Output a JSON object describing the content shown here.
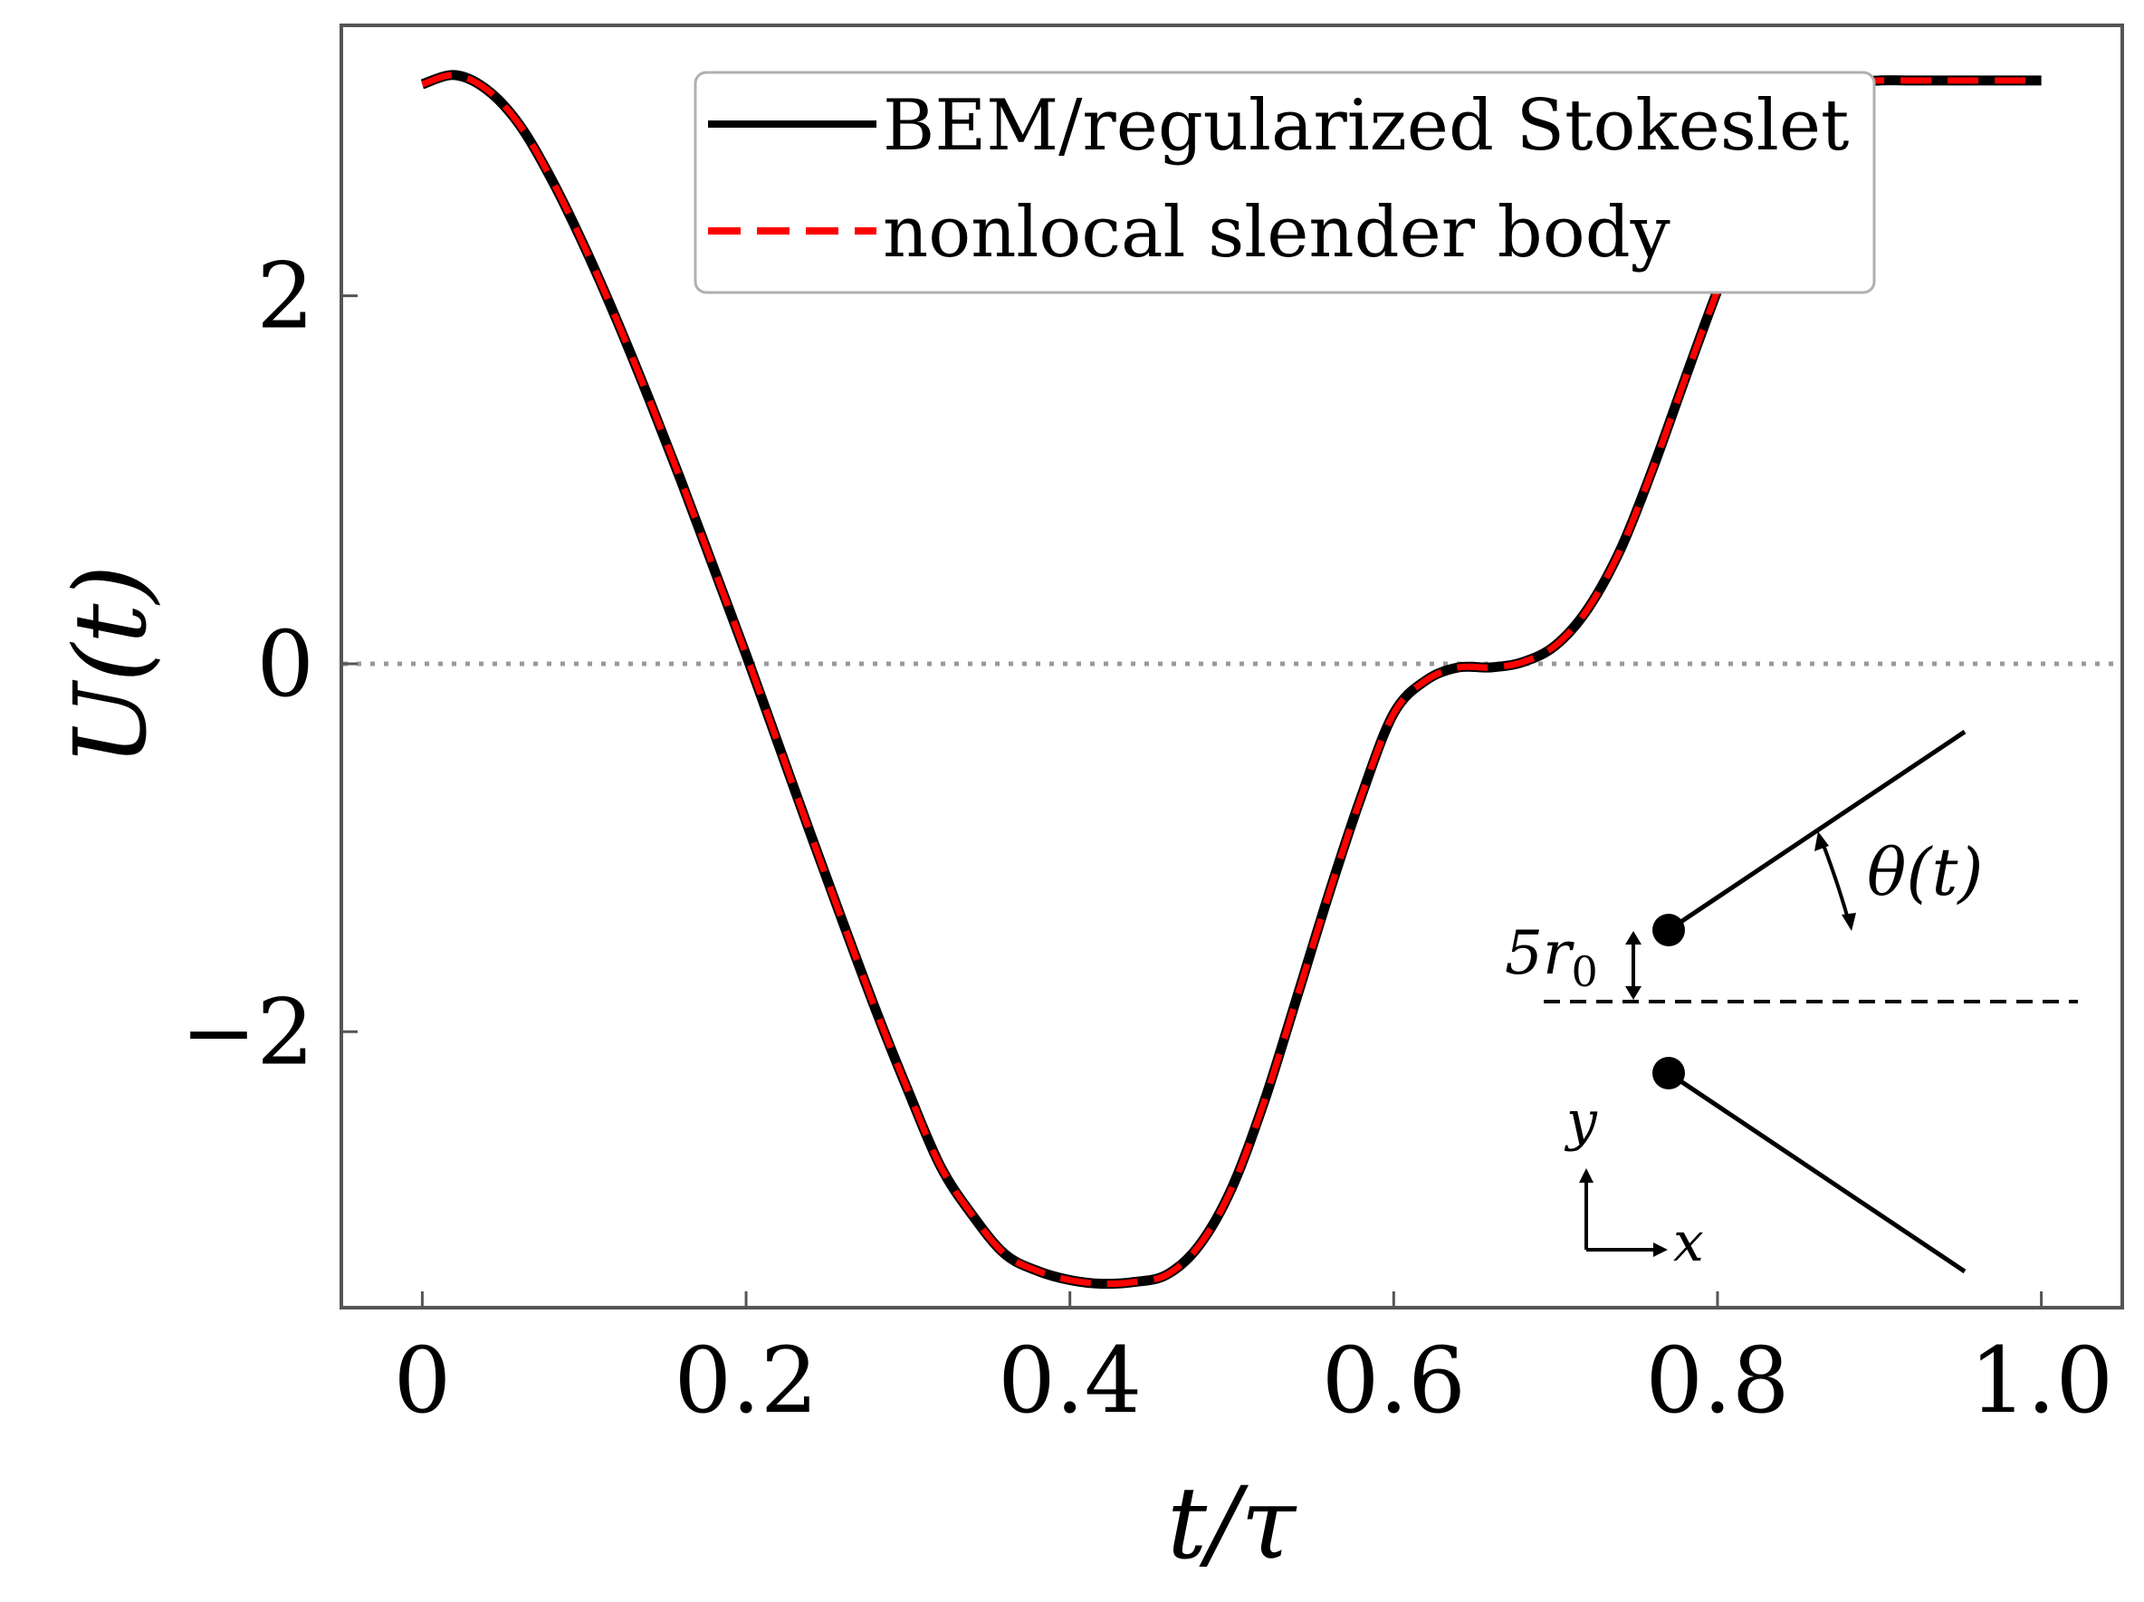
{
  "chart_data": {
    "type": "line",
    "xlabel_main": "t/τ",
    "ylabel_main": "U(t)",
    "xlim": [
      -0.05,
      1.05
    ],
    "ylim": [
      -3.5,
      3.47
    ],
    "xticks": [
      0,
      0.2,
      0.4,
      0.6,
      0.8,
      1.0
    ],
    "xtick_labels": [
      "0",
      "0.2",
      "0.4",
      "0.6",
      "0.8",
      "1.0"
    ],
    "yticks": [
      2,
      0,
      -2
    ],
    "ytick_labels": [
      "2",
      "0",
      "−2"
    ],
    "zero_line": {
      "y": 0,
      "style": "dotted",
      "color": "#999999"
    },
    "legend": {
      "placement": "top-center"
    },
    "series": [
      {
        "name": "BEM/regularized Stokeslet",
        "color": "#000000",
        "style": "solid",
        "x": [
          0,
          0.02,
          0.04,
          0.06,
          0.08,
          0.1,
          0.12,
          0.14,
          0.16,
          0.18,
          0.2,
          0.22,
          0.24,
          0.26,
          0.28,
          0.3,
          0.32,
          0.34,
          0.36,
          0.38,
          0.4,
          0.42,
          0.44,
          0.46,
          0.48,
          0.5,
          0.52,
          0.54,
          0.56,
          0.58,
          0.6,
          0.62,
          0.64,
          0.66,
          0.68,
          0.7,
          0.72,
          0.74,
          0.76,
          0.78,
          0.8,
          0.82,
          0.84,
          0.86,
          0.88,
          0.9,
          0.92,
          0.94,
          0.96,
          0.98,
          1.0
        ],
        "values": [
          3.15,
          3.2,
          3.12,
          2.93,
          2.63,
          2.27,
          1.87,
          1.44,
          0.99,
          0.52,
          0.05,
          -0.44,
          -0.93,
          -1.41,
          -1.88,
          -2.32,
          -2.73,
          -3.0,
          -3.21,
          -3.3,
          -3.35,
          -3.37,
          -3.36,
          -3.32,
          -3.16,
          -2.85,
          -2.38,
          -1.82,
          -1.25,
          -0.72,
          -0.27,
          -0.09,
          -0.02,
          -0.02,
          0.01,
          0.1,
          0.3,
          0.62,
          1.06,
          1.55,
          2.03,
          2.47,
          2.82,
          3.04,
          3.15,
          3.17,
          3.17,
          3.17,
          3.17,
          3.17,
          3.17
        ]
      },
      {
        "name": "nonlocal slender body",
        "color": "#ff0000",
        "style": "dashed",
        "x": [
          0,
          0.02,
          0.04,
          0.06,
          0.08,
          0.1,
          0.12,
          0.14,
          0.16,
          0.18,
          0.2,
          0.22,
          0.24,
          0.26,
          0.28,
          0.3,
          0.32,
          0.34,
          0.36,
          0.38,
          0.4,
          0.42,
          0.44,
          0.46,
          0.48,
          0.5,
          0.52,
          0.54,
          0.56,
          0.58,
          0.6,
          0.62,
          0.64,
          0.66,
          0.68,
          0.7,
          0.72,
          0.74,
          0.76,
          0.78,
          0.8,
          0.82,
          0.84,
          0.86,
          0.88,
          0.9,
          0.92,
          0.94,
          0.96,
          0.98,
          1.0
        ],
        "values": [
          3.15,
          3.2,
          3.12,
          2.93,
          2.63,
          2.27,
          1.87,
          1.44,
          0.99,
          0.52,
          0.05,
          -0.44,
          -0.93,
          -1.41,
          -1.88,
          -2.32,
          -2.73,
          -3.0,
          -3.21,
          -3.3,
          -3.35,
          -3.37,
          -3.36,
          -3.32,
          -3.16,
          -2.85,
          -2.38,
          -1.82,
          -1.25,
          -0.72,
          -0.27,
          -0.09,
          -0.02,
          -0.02,
          0.01,
          0.1,
          0.3,
          0.62,
          1.06,
          1.55,
          2.03,
          2.47,
          2.82,
          3.04,
          3.15,
          3.17,
          3.17,
          3.17,
          3.17,
          3.17,
          3.17
        ]
      }
    ]
  },
  "inset": {
    "angle_label": "θ(t)",
    "gap_label": "5r",
    "gap_label_sub": "0",
    "axis_y_label": "y",
    "axis_x_label": "x"
  },
  "colors": {
    "axes": "#555555",
    "legend_border": "#b0b0b0"
  }
}
